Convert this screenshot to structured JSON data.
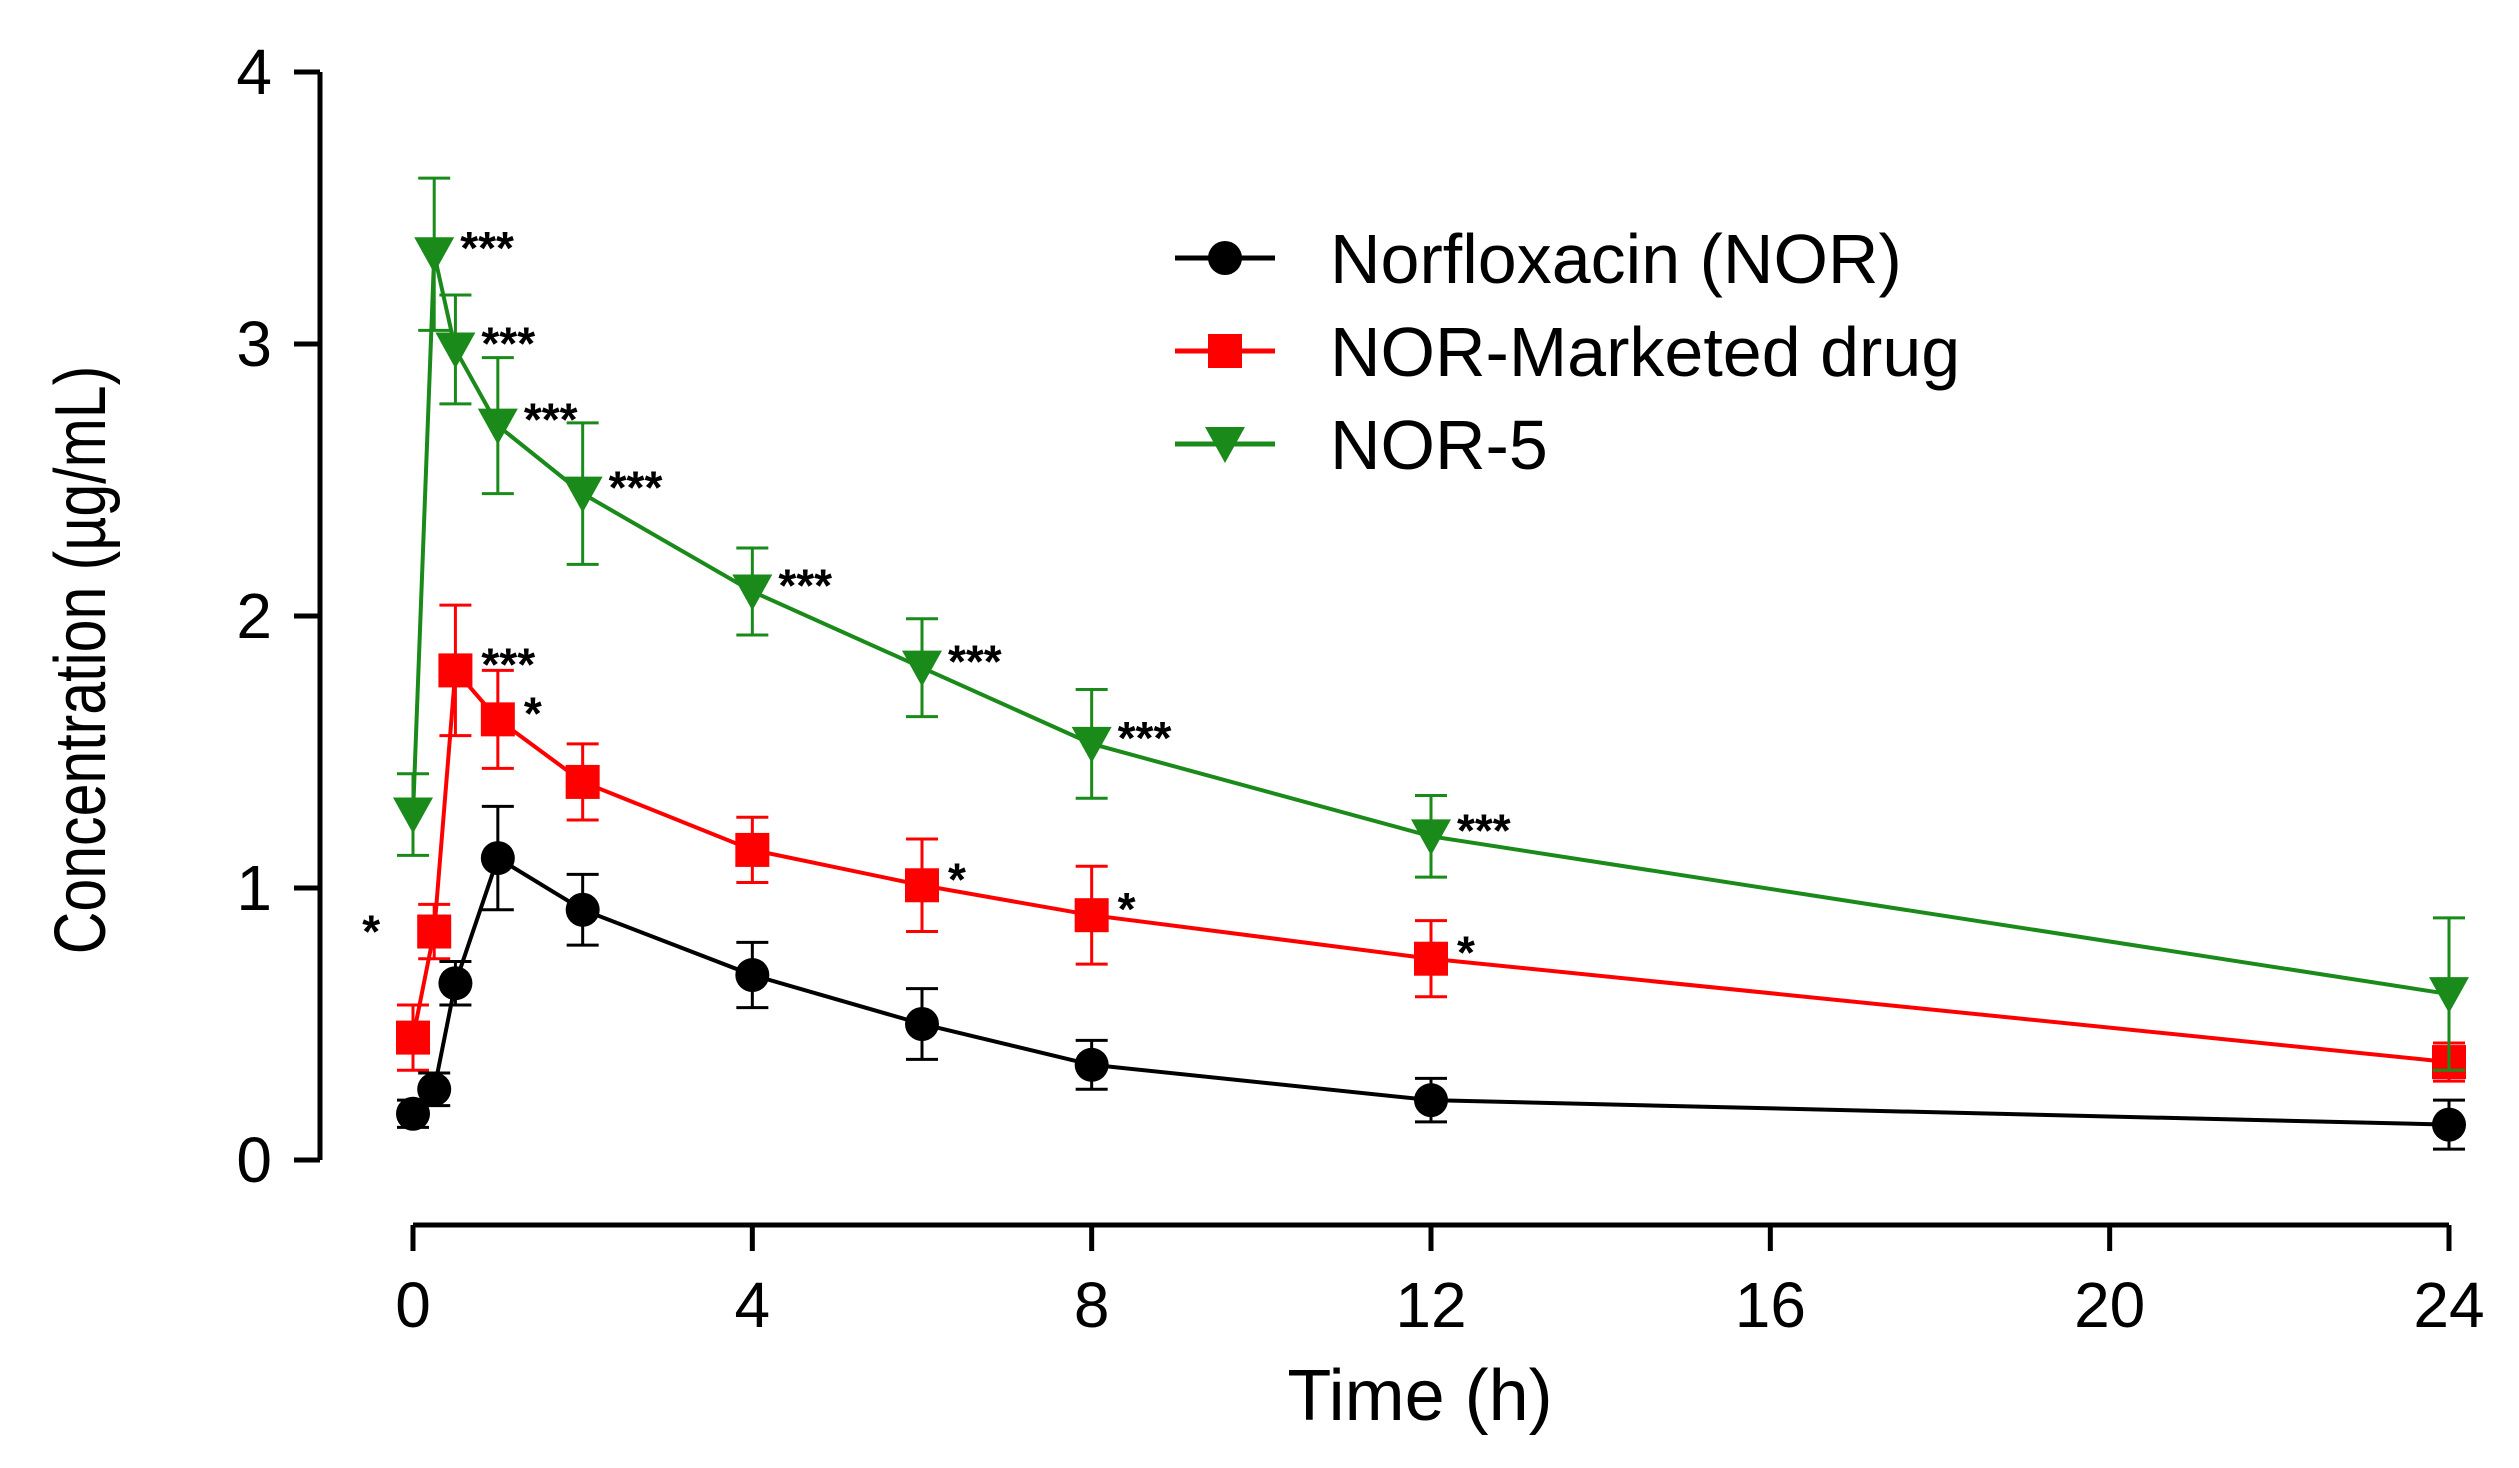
{
  "chart_data": {
    "type": "line",
    "title": "",
    "xlabel": "Time (h)",
    "ylabel": "Concentration (µg/mL)",
    "xlim": [
      0,
      24
    ],
    "ylim": [
      0,
      4
    ],
    "xticks": [
      "0",
      "4",
      "8",
      "12",
      "16",
      "20",
      "24"
    ],
    "yticks": [
      "0",
      "1",
      "2",
      "3",
      "4"
    ],
    "x": [
      0,
      0.25,
      0.5,
      1,
      2,
      4,
      6,
      8,
      12,
      24
    ],
    "legend_position": "top-right",
    "series": [
      {
        "name": "Norfloxacin (NOR)",
        "marker": "circle",
        "color": "#000000",
        "values": [
          0.17,
          0.26,
          0.65,
          1.11,
          0.92,
          0.68,
          0.5,
          0.35,
          0.22,
          0.13
        ],
        "errors": [
          0.05,
          0.06,
          0.08,
          0.19,
          0.13,
          0.12,
          0.13,
          0.09,
          0.08,
          0.09
        ],
        "annotations": [
          "",
          "",
          "",
          "",
          "",
          "",
          "",
          "",
          "",
          ""
        ]
      },
      {
        "name": "NOR-Marketed drug",
        "marker": "square",
        "color": "#ff0000",
        "values": [
          0.45,
          0.84,
          1.8,
          1.62,
          1.39,
          1.14,
          1.01,
          0.9,
          0.74,
          0.36
        ],
        "errors": [
          0.12,
          0.1,
          0.24,
          0.18,
          0.14,
          0.12,
          0.17,
          0.18,
          0.14,
          0.07
        ],
        "annotations": [
          "",
          "*",
          "***",
          "*",
          "",
          "",
          "*",
          "*",
          "*",
          ""
        ]
      },
      {
        "name": "NOR-5",
        "marker": "triangle-down",
        "color": "#1a8a1a",
        "values": [
          1.27,
          3.33,
          2.98,
          2.7,
          2.45,
          2.09,
          1.81,
          1.53,
          1.19,
          0.61
        ],
        "errors": [
          0.15,
          0.28,
          0.2,
          0.25,
          0.26,
          0.16,
          0.18,
          0.2,
          0.15,
          0.28
        ],
        "annotations": [
          "",
          "***",
          "***",
          "***",
          "***",
          "***",
          "***",
          "***",
          "***",
          ""
        ]
      }
    ]
  }
}
